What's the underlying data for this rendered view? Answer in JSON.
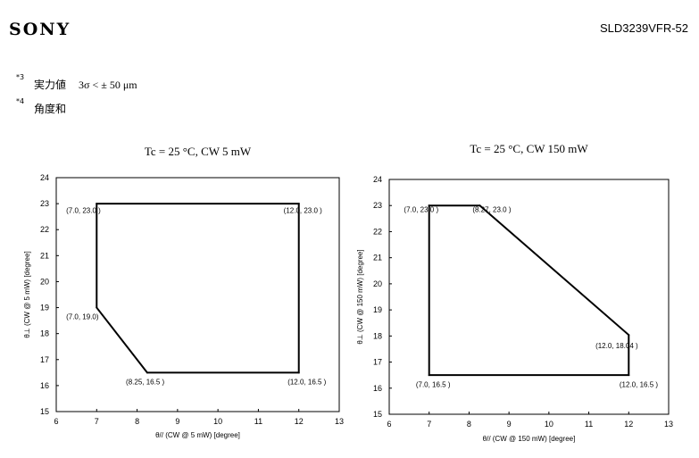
{
  "header": {
    "brand": "SONY",
    "model": "SLD3239VFR-52"
  },
  "notes": [
    {
      "marker": "*3",
      "label": "実力値",
      "value": "3σ < ± 50 μm"
    },
    {
      "marker": "*4",
      "label": "角度和",
      "value": ""
    }
  ],
  "chart_data": [
    {
      "type": "line",
      "title": "Tc = 25 °C, CW 5 mW",
      "xlabel": "θ// (CW @ 5 mW) [degree]",
      "ylabel": "θ⊥ (CW @ 5 mW) [degree]",
      "xlim": [
        6,
        13
      ],
      "ylim": [
        15,
        24
      ],
      "xticks": [
        6,
        7,
        8,
        9,
        10,
        11,
        12,
        13
      ],
      "yticks": [
        15,
        16,
        17,
        18,
        19,
        20,
        21,
        22,
        23,
        24
      ],
      "grid": false,
      "series": [
        {
          "closed": true,
          "points": [
            {
              "x": 7.0,
              "y": 23.0,
              "label": "(7.0, 23.0 )",
              "anchor": "end",
              "dx": 0.1,
              "dy": -0.35
            },
            {
              "x": 12.0,
              "y": 23.0,
              "label": "(12.0, 23.0 )",
              "anchor": "middle",
              "dx": 0.1,
              "dy": -0.35
            },
            {
              "x": 12.0,
              "y": 16.5,
              "label": "(12.0, 16.5 )",
              "anchor": "middle",
              "dx": 0.2,
              "dy": -0.45
            },
            {
              "x": 8.25,
              "y": 16.5,
              "label": "(8.25, 16.5 )",
              "anchor": "middle",
              "dx": -0.05,
              "dy": -0.45
            },
            {
              "x": 7.0,
              "y": 19.0,
              "label": "(7.0, 19.0)",
              "anchor": "end",
              "dx": 0.05,
              "dy": -0.45
            }
          ]
        }
      ]
    },
    {
      "type": "line",
      "title": "Tc = 25 °C, CW 150 mW",
      "xlabel": "θ// (CW @ 150 mW) [degree]",
      "ylabel": "θ⊥ (CW @ 150 mW) [degree]",
      "xlim": [
        6,
        13
      ],
      "ylim": [
        15,
        24
      ],
      "xticks": [
        6,
        7,
        8,
        9,
        10,
        11,
        12,
        13
      ],
      "yticks": [
        15,
        16,
        17,
        18,
        19,
        20,
        21,
        22,
        23,
        24
      ],
      "grid": false,
      "series": [
        {
          "closed": true,
          "points": [
            {
              "x": 7.0,
              "y": 23.0,
              "label": "(7.0, 23.0 )",
              "anchor": "middle",
              "dx": -0.2,
              "dy": -0.25
            },
            {
              "x": 8.27,
              "y": 23.0,
              "label": "(8.27, 23.0 )",
              "anchor": "middle",
              "dx": 0.3,
              "dy": -0.25
            },
            {
              "x": 12.0,
              "y": 18.04,
              "label": "(12.0, 18.04 )",
              "anchor": "middle",
              "dx": -0.3,
              "dy": -0.5
            },
            {
              "x": 12.0,
              "y": 16.5,
              "label": "(12.0, 16.5 )",
              "anchor": "middle",
              "dx": 0.25,
              "dy": -0.45
            },
            {
              "x": 7.0,
              "y": 16.5,
              "label": "(7.0, 16.5 )",
              "anchor": "middle",
              "dx": 0.1,
              "dy": -0.45
            }
          ]
        }
      ]
    }
  ]
}
